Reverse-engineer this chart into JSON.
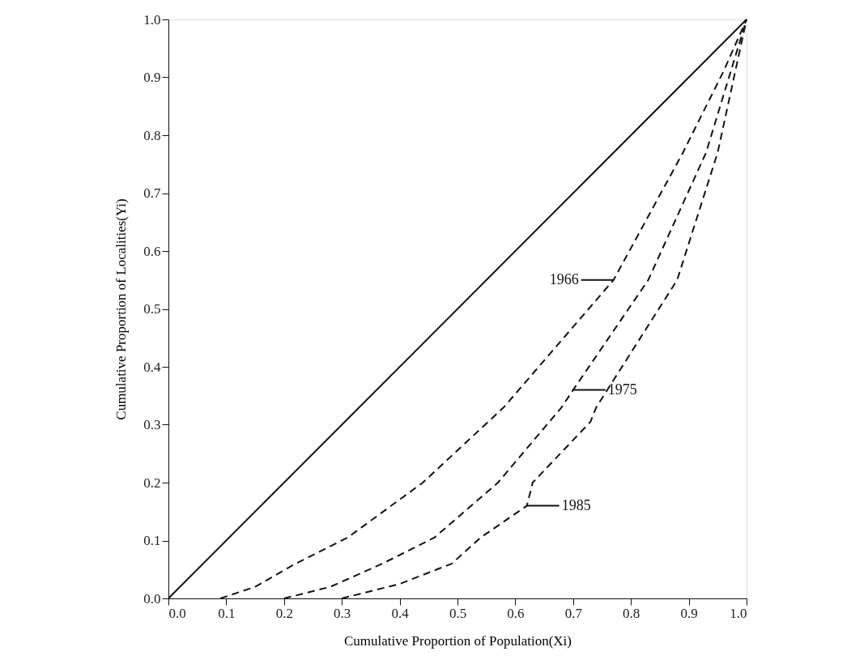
{
  "chart_data": {
    "type": "line",
    "xlabel": "Cumulative Proportion of Population(Xi)",
    "ylabel": "Cumulative Proportion of Localities(Yi)",
    "xlim": [
      0,
      1
    ],
    "ylim": [
      0,
      1
    ],
    "xticks": [
      {
        "value": 0,
        "label": "0.0"
      },
      0.1,
      0.2,
      0.3,
      0.4,
      0.5,
      0.6,
      0.7,
      0.8,
      0.9,
      {
        "value": 1,
        "label": "1.0"
      }
    ],
    "yticks": [
      {
        "value": 0,
        "label": "0.0"
      },
      0.1,
      0.2,
      0.3,
      0.4,
      0.5,
      0.6,
      0.7,
      0.8,
      0.9,
      {
        "value": 1,
        "label": "1.0"
      }
    ],
    "grid": false,
    "marker": "none",
    "series": [
      {
        "color": "#111111",
        "line_style": "solid",
        "x": [
          0,
          1
        ],
        "values": [
          0,
          1
        ]
      },
      {
        "color": "#111111",
        "line_style": "dashed",
        "x": [
          0.09,
          0.15,
          0.22,
          0.31,
          0.44,
          0.58,
          0.77,
          0.89,
          0.96,
          1
        ],
        "values": [
          0,
          0.02,
          0.06,
          0.105,
          0.2,
          0.33,
          0.55,
          0.77,
          0.91,
          1
        ]
      },
      {
        "color": "#111111",
        "line_style": "dashed",
        "x": [
          0.2,
          0.28,
          0.37,
          0.46,
          0.57,
          0.68,
          0.7,
          0.83,
          0.93,
          1
        ],
        "values": [
          0,
          0.02,
          0.06,
          0.105,
          0.2,
          0.33,
          0.36,
          0.55,
          0.77,
          1
        ]
      },
      {
        "color": "#111111",
        "line_style": "dashed",
        "x": [
          0.3,
          0.4,
          0.49,
          0.54,
          0.62,
          0.63,
          0.73,
          0.74,
          0.88,
          0.95,
          1
        ],
        "values": [
          0,
          0.025,
          0.06,
          0.105,
          0.16,
          0.2,
          0.305,
          0.33,
          0.55,
          0.77,
          1
        ]
      }
    ],
    "annotations": [
      {
        "text": "1966",
        "x": 0.77,
        "y": 0.55
      },
      {
        "text": "1975",
        "x": 0.7,
        "y": 0.36
      },
      {
        "text": "1985",
        "x": 0.62,
        "y": 0.16
      }
    ]
  }
}
